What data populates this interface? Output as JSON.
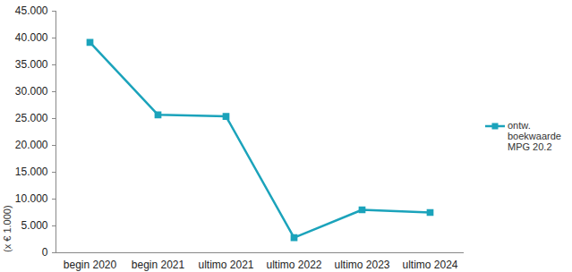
{
  "chart_data": {
    "type": "line",
    "categories": [
      "begin 2020",
      "begin 2021",
      "ultimo 2021",
      "ultimo 2022",
      "ultimo 2023",
      "ultimo 2024"
    ],
    "series": [
      {
        "name": "ontw. boekwaarde MPG 20.2",
        "color": "#1ba3bb",
        "values": [
          39200,
          25700,
          25400,
          2800,
          8000,
          7500
        ],
        "marker": "square",
        "line_style": "solid"
      }
    ],
    "y_label": "(x € 1.000)",
    "ylim": [
      0,
      45000
    ],
    "yticks": [
      0,
      {
        "value": 5000,
        "label": "5.000"
      },
      {
        "value": 10000,
        "label": "10.000"
      },
      {
        "value": 15000,
        "label": "15.000"
      },
      {
        "value": 20000,
        "label": "20.000"
      },
      {
        "value": 25000,
        "label": "25.000"
      },
      {
        "value": 30000,
        "label": "30.000"
      },
      {
        "value": 35000,
        "label": "35.000"
      },
      {
        "value": 40000,
        "label": "40.000"
      },
      {
        "value": 45000,
        "label": "45.000"
      }
    ],
    "grid": false,
    "legend": "right"
  }
}
